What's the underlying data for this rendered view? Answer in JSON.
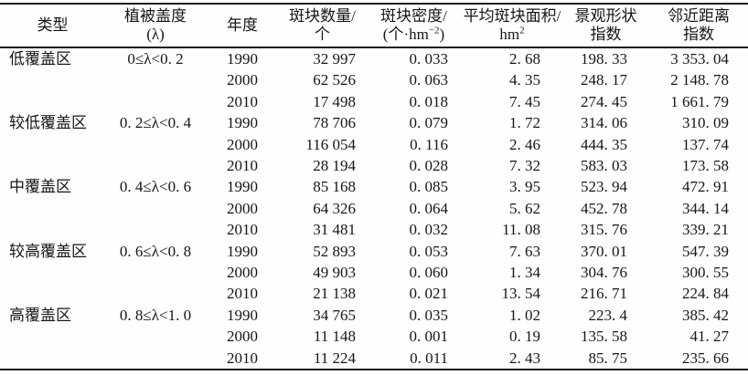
{
  "table": {
    "headers": [
      {
        "line1": "类型"
      },
      {
        "line1": "植被盖度",
        "line2_pre": "(λ)"
      },
      {
        "line1": "年度"
      },
      {
        "line1": "斑块数量/",
        "line2_pre": "个"
      },
      {
        "line1": "斑块密度/",
        "line2_pre": "(个·hm",
        "sup": "−2",
        "line2_post": ")"
      },
      {
        "line1": "平均斑块面积/",
        "line2_pre": "hm",
        "sup": "2",
        "line2_post": ""
      },
      {
        "line1": "景观形状",
        "line2_pre": "指数"
      },
      {
        "line1": "邻近距离",
        "line2_pre": "指数"
      }
    ],
    "groups": [
      {
        "type": "低覆盖区",
        "coverage": "0≤λ<0. 2",
        "rows": [
          {
            "year": "1990",
            "patches": "32 997",
            "density": "0. 033",
            "area": "2. 68",
            "shape": "198. 33",
            "proximity": "3 353. 04"
          },
          {
            "year": "2000",
            "patches": "62 526",
            "density": "0. 063",
            "area": "4. 35",
            "shape": "248. 17",
            "proximity": "2 148. 78"
          },
          {
            "year": "2010",
            "patches": "17 498",
            "density": "0. 018",
            "area": "7. 45",
            "shape": "274. 45",
            "proximity": "1 661. 79"
          }
        ]
      },
      {
        "type": "较低覆盖区",
        "coverage": "0. 2≤λ<0. 4",
        "rows": [
          {
            "year": "1990",
            "patches": "78 706",
            "density": "0. 079",
            "area": "1. 72",
            "shape": "314. 06",
            "proximity": "310. 09"
          },
          {
            "year": "2000",
            "patches": "116 054",
            "density": "0. 116",
            "area": "2. 46",
            "shape": "444. 35",
            "proximity": "137. 74"
          },
          {
            "year": "2010",
            "patches": "28 194",
            "density": "0. 028",
            "area": "7. 32",
            "shape": "583. 03",
            "proximity": "173. 58"
          }
        ]
      },
      {
        "type": "中覆盖区",
        "coverage": "0. 4≤λ<0. 6",
        "rows": [
          {
            "year": "1990",
            "patches": "85 168",
            "density": "0. 085",
            "area": "3. 95",
            "shape": "523. 94",
            "proximity": "472. 91"
          },
          {
            "year": "2000",
            "patches": "64 326",
            "density": "0. 064",
            "area": "5. 62",
            "shape": "452. 78",
            "proximity": "344. 14"
          },
          {
            "year": "2010",
            "patches": "31 481",
            "density": "0. 032",
            "area": "11. 08",
            "shape": "315. 76",
            "proximity": "339. 21"
          }
        ]
      },
      {
        "type": "较高覆盖区",
        "coverage": "0. 6≤λ<0. 8",
        "rows": [
          {
            "year": "1990",
            "patches": "52 893",
            "density": "0. 053",
            "area": "7. 63",
            "shape": "370. 01",
            "proximity": "547. 39"
          },
          {
            "year": "2000",
            "patches": "49 903",
            "density": "0. 060",
            "area": "1. 34",
            "shape": "304. 76",
            "proximity": "300. 55"
          },
          {
            "year": "2010",
            "patches": "21 138",
            "density": "0. 021",
            "area": "13. 54",
            "shape": "216. 71",
            "proximity": "224. 84"
          }
        ]
      },
      {
        "type": "高覆盖区",
        "coverage": "0. 8≤λ<1. 0",
        "rows": [
          {
            "year": "1990",
            "patches": "34 765",
            "density": "0. 035",
            "area": "1. 02",
            "shape": "223. 4",
            "proximity": "385. 42"
          },
          {
            "year": "2000",
            "patches": "11 148",
            "density": "0. 001",
            "area": "0. 19",
            "shape": "135. 58",
            "proximity": "41. 27"
          },
          {
            "year": "2010",
            "patches": "11 224",
            "density": "0. 011",
            "area": "2. 43",
            "shape": "85. 75",
            "proximity": "235. 66"
          }
        ]
      }
    ]
  }
}
